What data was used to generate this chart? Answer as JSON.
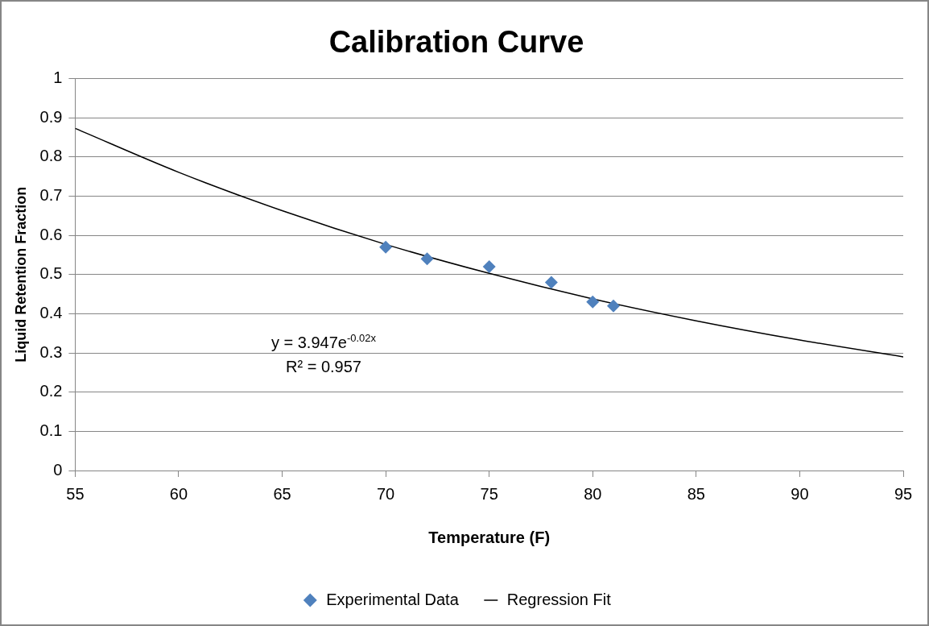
{
  "chart_data": {
    "type": "scatter",
    "title": "Calibration Curve",
    "xlabel": "Temperature (F)",
    "ylabel": "Liquid Retention Fraction",
    "xlim": [
      55,
      95
    ],
    "xticks": [
      55,
      60,
      65,
      70,
      75,
      80,
      85,
      90,
      95
    ],
    "ylim": [
      0,
      1
    ],
    "yticks": [
      0,
      0.1,
      0.2,
      0.3,
      0.4,
      0.5,
      0.6,
      0.7,
      0.8,
      0.9,
      1
    ],
    "grid": "y",
    "legend": "bottom",
    "series": [
      {
        "name": "Experimental Data",
        "type": "scatter",
        "marker": "diamond",
        "color": "#4f81bd",
        "x": [
          70,
          72,
          75,
          78,
          80,
          81
        ],
        "values": [
          0.57,
          0.54,
          0.52,
          0.48,
          0.43,
          0.42
        ]
      },
      {
        "name": "Regression Fit",
        "type": "line",
        "marker": "none",
        "color": "#000000",
        "x": [
          55,
          60,
          65,
          70,
          75,
          80,
          85,
          90,
          95
        ],
        "values": [
          0.873,
          0.761,
          0.663,
          0.577,
          0.503,
          0.438,
          0.382,
          0.333,
          0.29
        ]
      }
    ],
    "annotations": [
      "y = 3.947e$^{-0.02x}$",
      "R² = 0.957"
    ]
  }
}
